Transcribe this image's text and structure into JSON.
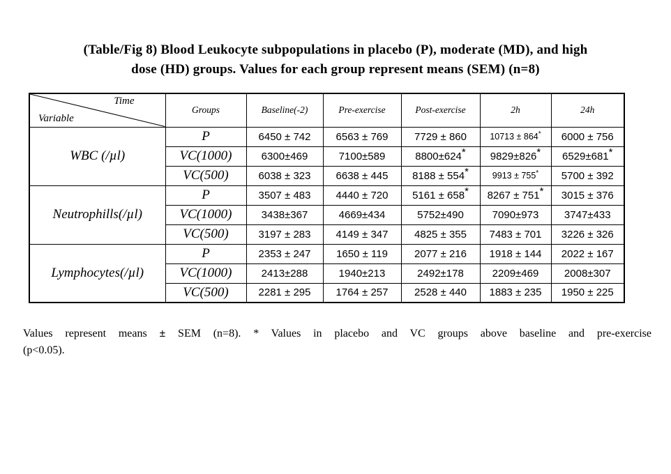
{
  "title": "(Table/Fig 8) Blood Leukocyte subpopulations in placebo (P), moderate (MD), and high\ndose (HD) groups. Values for each group represent means (SEM) (n=8)",
  "table": {
    "corner": {
      "top": "Time",
      "bottom": "Variable"
    },
    "columns": [
      "Groups",
      "Baseline(-2)",
      "Pre-exercise",
      "Post-exercise",
      "2h",
      "24h"
    ],
    "star_symbol": "*",
    "groups": [
      {
        "variable": "WBC (/µl)",
        "rows": [
          {
            "group": "P",
            "cells": [
              {
                "v": "6450 ± 742"
              },
              {
                "v": "6563 ± 769"
              },
              {
                "v": "7729 ± 860"
              },
              {
                "v": "10713 ± 864",
                "star": "small"
              },
              {
                "v": "6000 ± 756"
              }
            ]
          },
          {
            "group": "VC(1000)",
            "cells": [
              {
                "v": "6300±469"
              },
              {
                "v": "7100±589"
              },
              {
                "v": "8800±624",
                "star": "large"
              },
              {
                "v": "9829±826",
                "star": "large"
              },
              {
                "v": "6529±681",
                "star": "large"
              }
            ]
          },
          {
            "group": "VC(500)",
            "cells": [
              {
                "v": "6038 ± 323"
              },
              {
                "v": "6638 ± 445"
              },
              {
                "v": "8188 ± 554",
                "star": "large"
              },
              {
                "v": "9913 ± 755",
                "star": "small"
              },
              {
                "v": "5700 ± 392"
              }
            ]
          }
        ]
      },
      {
        "variable": "Neutrophills(/µl)",
        "rows": [
          {
            "group": "P",
            "cells": [
              {
                "v": "3507 ± 483"
              },
              {
                "v": "4440 ± 720"
              },
              {
                "v": "5161 ± 658",
                "star": "large"
              },
              {
                "v": "8267 ± 751",
                "star": "large"
              },
              {
                "v": "3015 ± 376"
              }
            ]
          },
          {
            "group": "VC(1000)",
            "cells": [
              {
                "v": "3438±367"
              },
              {
                "v": "4669±434"
              },
              {
                "v": "5752±490"
              },
              {
                "v": "7090±973"
              },
              {
                "v": "3747±433"
              }
            ]
          },
          {
            "group": "VC(500)",
            "cells": [
              {
                "v": "3197 ± 283"
              },
              {
                "v": "4149 ± 347"
              },
              {
                "v": "4825 ± 355"
              },
              {
                "v": "7483 ± 701"
              },
              {
                "v": "3226 ± 326"
              }
            ]
          }
        ]
      },
      {
        "variable": "Lymphocytes(/µl)",
        "rows": [
          {
            "group": "P",
            "cells": [
              {
                "v": "2353 ± 247"
              },
              {
                "v": "1650 ± 119"
              },
              {
                "v": "2077 ± 216"
              },
              {
                "v": "1918 ± 144"
              },
              {
                "v": "2022 ± 167"
              }
            ]
          },
          {
            "group": "VC(1000)",
            "cells": [
              {
                "v": "2413±288"
              },
              {
                "v": "1940±213"
              },
              {
                "v": "2492±178"
              },
              {
                "v": "2209±469"
              },
              {
                "v": "2008±307"
              }
            ]
          },
          {
            "group": "VC(500)",
            "cells": [
              {
                "v": "2281 ± 295"
              },
              {
                "v": "1764 ± 257"
              },
              {
                "v": "2528 ± 440"
              },
              {
                "v": "1883 ± 235"
              },
              {
                "v": "1950 ± 225"
              }
            ]
          }
        ]
      }
    ]
  },
  "footer": {
    "line1_pre": "Values represent means ",
    "pm": "±",
    "line1_post": " SEM (n=8). * Values in placebo and VC groups above baseline and pre-exercise",
    "line2": "(p<0.05)."
  }
}
